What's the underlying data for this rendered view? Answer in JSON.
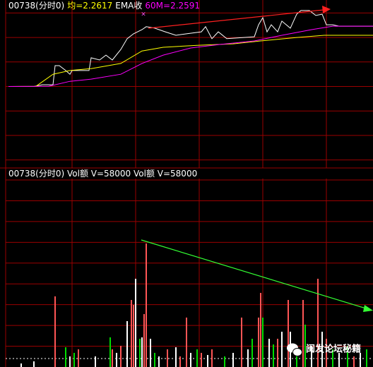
{
  "chart_data": [
    {
      "type": "line",
      "header": [
        {
          "text": "00738(分时0)",
          "color": "#ffffff"
        },
        {
          "text": "均=2.2617",
          "color": "#ffff00"
        },
        {
          "text": "EMA收",
          "color": "#ffffff"
        },
        {
          "text": "60M=2.2591",
          "color": "#ff00ff"
        }
      ],
      "xlim": [
        0,
        172
      ],
      "xticks": [
        30,
        60,
        90,
        120,
        150
      ],
      "ylim": [
        2.207,
        2.273
      ],
      "yticks": [
        2.21,
        2.22,
        2.23,
        2.24,
        2.25,
        2.26,
        2.27
      ],
      "grid": true,
      "series": [
        {
          "color": "#ffffff",
          "x": [
            0,
            12,
            16,
            21,
            22,
            24,
            27,
            29,
            30,
            38,
            39,
            43,
            46,
            49,
            53,
            56,
            59,
            63,
            65,
            69,
            74,
            79,
            84,
            91,
            93,
            96,
            99,
            103,
            116,
            118,
            120,
            122,
            124,
            127,
            129,
            133,
            136,
            138,
            142,
            145,
            148,
            150,
            153,
            156,
            172
          ],
          "values": [
            2.24,
            2.24,
            2.2407,
            2.2407,
            2.2485,
            2.2485,
            2.2465,
            2.245,
            2.2465,
            2.2465,
            2.2517,
            2.2508,
            2.2528,
            2.2508,
            2.2551,
            2.2595,
            2.2615,
            2.2632,
            2.2644,
            2.2638,
            2.2623,
            2.2609,
            2.2615,
            2.2623,
            2.2644,
            2.2595,
            2.2623,
            2.2595,
            2.2603,
            2.2652,
            2.2681,
            2.2623,
            2.2652,
            2.2623,
            2.2667,
            2.2638,
            2.2695,
            2.271,
            2.271,
            2.269,
            2.2695,
            2.2652,
            2.2652,
            2.2646,
            2.2646
          ]
        },
        {
          "color": "#ffff00",
          "x": [
            0,
            13,
            21,
            29,
            39,
            53,
            63,
            73,
            89,
            106,
            119,
            136,
            149,
            172
          ],
          "values": [
            2.24,
            2.2401,
            2.245,
            2.2465,
            2.2473,
            2.2494,
            2.2545,
            2.256,
            2.2568,
            2.2574,
            2.2586,
            2.26,
            2.2609,
            2.2609
          ]
        },
        {
          "color": "#ff00ff",
          "x": [
            0,
            19,
            29,
            39,
            53,
            63,
            73,
            86,
            99,
            116,
            129,
            143,
            153,
            172
          ],
          "values": [
            2.24,
            2.2401,
            2.2421,
            2.243,
            2.245,
            2.2494,
            2.2528,
            2.2557,
            2.2571,
            2.2586,
            2.2609,
            2.2632,
            2.2646,
            2.2646
          ]
        }
      ]
    },
    {
      "type": "bar",
      "header": [
        {
          "text": "00738(分时0) Vol额 V=58000 Vol额 V=58000",
          "color": "#ffffff"
        }
      ],
      "xlim": [
        0,
        172
      ],
      "xticks": [
        30,
        60,
        90,
        120,
        150
      ],
      "ylim": [
        0,
        450000
      ],
      "yticks": [
        50000,
        100000,
        150000,
        200000,
        250000,
        300000,
        350000,
        400000,
        450000
      ],
      "grid": true,
      "series": [
        {
          "color": "#ff5555",
          "x": [
            22,
            33,
            49,
            53,
            58,
            59,
            64,
            65,
            75,
            81,
            84,
            91,
            96,
            110,
            118,
            119,
            127,
            132,
            139,
            146,
            150,
            163
          ],
          "values": [
            170000,
            42500,
            42500,
            51000,
            161300,
            149400,
            127400,
            297200,
            42500,
            25500,
            118900,
            34000,
            42500,
            118900,
            118900,
            178300,
            67900,
            161300,
            161300,
            212300,
            67900,
            25500
          ]
        },
        {
          "color": "#00dd00",
          "x": [
            27,
            31,
            48,
            62,
            69,
            89,
            102,
            115,
            120,
            125,
            136,
            140,
            153,
            160,
            169
          ],
          "values": [
            47500,
            34000,
            71300,
            67900,
            34000,
            42500,
            25500,
            67900,
            118900,
            54300,
            42500,
            101900,
            42500,
            50900,
            42500
          ]
        },
        {
          "color": "#ffffff",
          "x": [
            6,
            12,
            29,
            41,
            51,
            56,
            60,
            63,
            67,
            71,
            79,
            86,
            94,
            106,
            113,
            123,
            129,
            133,
            143,
            148,
            156,
            166
          ],
          "values": [
            8500,
            13600,
            25500,
            25500,
            34000,
            110400,
            212300,
            71300,
            67900,
            25500,
            47500,
            34000,
            28900,
            34000,
            42500,
            67900,
            84900,
            84900,
            50900,
            84900,
            34000,
            34000
          ]
        }
      ]
    }
  ],
  "watermark": "闽发论坛秘籍"
}
